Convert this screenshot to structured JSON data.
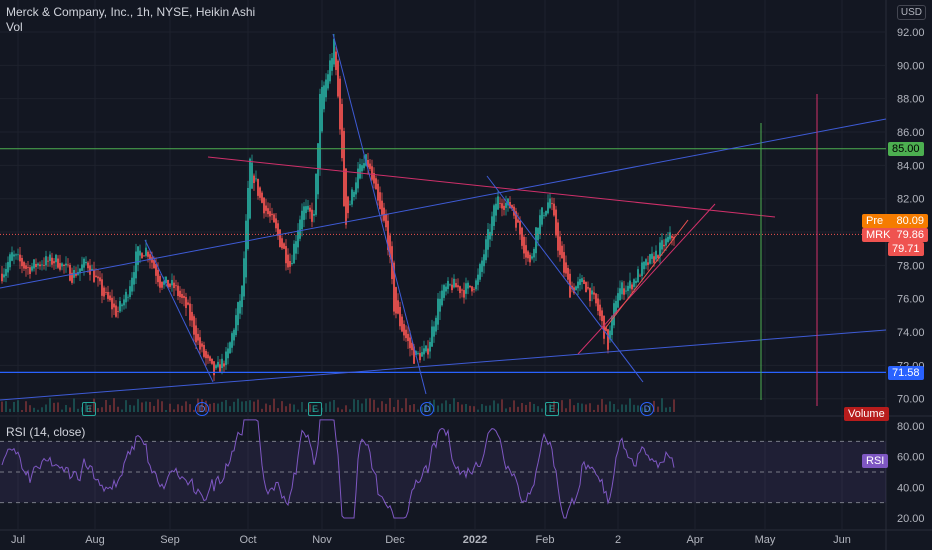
{
  "legend": {
    "title": "Merck & Company, Inc., 1h, NYSE, Heikin Ashi",
    "vol_label": "Vol",
    "rsi_label": "RSI (14, close)"
  },
  "currency": "USD",
  "price_tags": {
    "pre_label": "Pre",
    "pre_value": "80.09",
    "symbol": "MRK",
    "last_value": "79.86",
    "low_value": "79.71",
    "level_85": "85.00",
    "level_7158": "71.58",
    "volume_label": "Volume",
    "rsi_tag": "RSI"
  },
  "events": [
    {
      "type": "E",
      "x_date": "Jul 29"
    },
    {
      "type": "D",
      "x_date": "Sep 14"
    },
    {
      "type": "E",
      "x_date": "Oct 27"
    },
    {
      "type": "D",
      "x_date": "Dec 14"
    },
    {
      "type": "E",
      "x_date": "Feb 3"
    },
    {
      "type": "D",
      "x_date": "Mar 14"
    }
  ],
  "colors": {
    "background": "#131722",
    "up": "#26a69a",
    "down": "#ef5350",
    "trend_blue": "#3e5bd6",
    "trend_pink": "#d0306a",
    "grid": "#1e222d",
    "level_green": "#4caf50",
    "rsi": "#7e57c2"
  },
  "chart_data": [
    {
      "type": "candlestick",
      "title": "Merck & Company, Inc., 1h, NYSE, Heikin Ashi",
      "x_ticks": [
        "Jul",
        "Aug",
        "Sep",
        "Oct",
        "Nov",
        "Dec",
        "2022",
        "Feb",
        "2",
        "Apr",
        "May",
        "Jun"
      ],
      "y_ticks": [
        70.0,
        72.0,
        74.0,
        76.0,
        78.0,
        80.0,
        82.0,
        84.0,
        86.0,
        88.0,
        90.0,
        92.0
      ],
      "ylim": [
        69.5,
        93.2
      ],
      "price_path": [
        {
          "t": 0,
          "p": 77.5
        },
        {
          "t": 10,
          "p": 78.6
        },
        {
          "t": 25,
          "p": 77.8
        },
        {
          "t": 40,
          "p": 78.2
        },
        {
          "t": 55,
          "p": 78.3
        },
        {
          "t": 70,
          "p": 77.4
        },
        {
          "t": 85,
          "p": 78.2
        },
        {
          "t": 100,
          "p": 76.4
        },
        {
          "t": 115,
          "p": 75.1
        },
        {
          "t": 125,
          "p": 76.3
        },
        {
          "t": 135,
          "p": 78.7
        },
        {
          "t": 145,
          "p": 79.0
        },
        {
          "t": 158,
          "p": 77.0
        },
        {
          "t": 172,
          "p": 76.7
        },
        {
          "t": 185,
          "p": 75.4
        },
        {
          "t": 198,
          "p": 73.0
        },
        {
          "t": 212,
          "p": 71.5
        },
        {
          "t": 225,
          "p": 72.5
        },
        {
          "t": 240,
          "p": 76.5
        },
        {
          "t": 248,
          "p": 84.2
        },
        {
          "t": 258,
          "p": 82.0
        },
        {
          "t": 270,
          "p": 80.6
        },
        {
          "t": 288,
          "p": 78.0
        },
        {
          "t": 300,
          "p": 81.5
        },
        {
          "t": 312,
          "p": 80.8
        },
        {
          "t": 318,
          "p": 88.0
        },
        {
          "t": 325,
          "p": 89.3
        },
        {
          "t": 332,
          "p": 91.2
        },
        {
          "t": 338,
          "p": 86.5
        },
        {
          "t": 343,
          "p": 80.5
        },
        {
          "t": 355,
          "p": 83.5
        },
        {
          "t": 365,
          "p": 84.3
        },
        {
          "t": 378,
          "p": 81.2
        },
        {
          "t": 385,
          "p": 80.0
        },
        {
          "t": 392,
          "p": 75.5
        },
        {
          "t": 400,
          "p": 74.2
        },
        {
          "t": 412,
          "p": 72.5
        },
        {
          "t": 425,
          "p": 72.8
        },
        {
          "t": 438,
          "p": 76.3
        },
        {
          "t": 450,
          "p": 76.8
        },
        {
          "t": 462,
          "p": 76.5
        },
        {
          "t": 475,
          "p": 77.0
        },
        {
          "t": 485,
          "p": 79.5
        },
        {
          "t": 495,
          "p": 82.0
        },
        {
          "t": 510,
          "p": 81.5
        },
        {
          "t": 520,
          "p": 79.5
        },
        {
          "t": 528,
          "p": 78.0
        },
        {
          "t": 535,
          "p": 80.5
        },
        {
          "t": 548,
          "p": 82.0
        },
        {
          "t": 558,
          "p": 78.5
        },
        {
          "t": 568,
          "p": 76.5
        },
        {
          "t": 582,
          "p": 77.0
        },
        {
          "t": 595,
          "p": 75.5
        },
        {
          "t": 606,
          "p": 73.2
        },
        {
          "t": 615,
          "p": 76.5
        },
        {
          "t": 628,
          "p": 76.8
        },
        {
          "t": 640,
          "p": 77.8
        },
        {
          "t": 652,
          "p": 78.5
        },
        {
          "t": 662,
          "p": 79.3
        },
        {
          "t": 672,
          "p": 79.86
        }
      ],
      "levels": [
        85.0,
        71.58,
        79.86
      ]
    },
    {
      "type": "line",
      "title": "RSI (14, close)",
      "y_ticks": [
        20.0,
        40.0,
        60.0,
        80.0
      ],
      "ylim": [
        18,
        86
      ],
      "bands": [
        30,
        50,
        70
      ]
    }
  ]
}
